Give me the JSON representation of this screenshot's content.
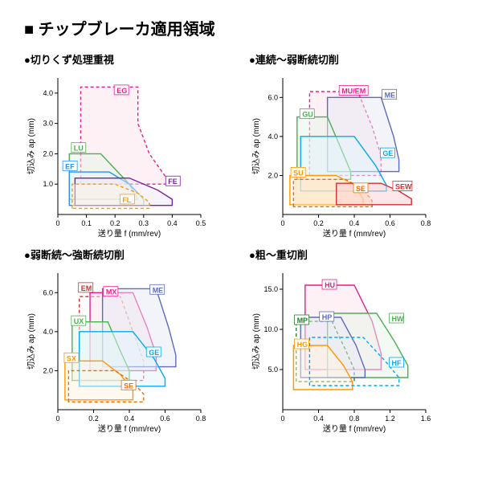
{
  "main_title": "■ チップブレーカ適用領域",
  "axis_y_label": "切込み ap (mm)",
  "axis_x_label": "送り量 f (mm/rev)",
  "charts": [
    {
      "title": "●切りくず処理重視",
      "xlim": [
        0,
        0.5
      ],
      "xticks": [
        0,
        0.1,
        0.2,
        0.3,
        0.4,
        0.5
      ],
      "ylim": [
        0,
        4.5
      ],
      "yticks": [
        1.0,
        2.0,
        3.0,
        4.0
      ],
      "regions": [
        {
          "name": "EG",
          "color": "#e91e8a",
          "fill": "#fce4ec",
          "dash": true,
          "pts": [
            [
              0.08,
              1.0
            ],
            [
              0.08,
              4.2
            ],
            [
              0.28,
              4.2
            ],
            [
              0.28,
              3.0
            ],
            [
              0.32,
              2.0
            ],
            [
              0.38,
              1.2
            ],
            [
              0.38,
              1.0
            ]
          ],
          "lx": 0.2,
          "ly": 4.0
        },
        {
          "name": "LU",
          "color": "#4caf50",
          "fill": "#e8f5e9",
          "dash": false,
          "pts": [
            [
              0.04,
              0.5
            ],
            [
              0.04,
              2.0
            ],
            [
              0.15,
              2.0
            ],
            [
              0.2,
              1.5
            ],
            [
              0.25,
              1.0
            ],
            [
              0.28,
              0.5
            ]
          ],
          "lx": 0.05,
          "ly": 2.1
        },
        {
          "name": "EF",
          "color": "#2196f3",
          "fill": "#e3f2fd",
          "dash": false,
          "pts": [
            [
              0.04,
              0.3
            ],
            [
              0.04,
              1.4
            ],
            [
              0.18,
              1.4
            ],
            [
              0.25,
              1.0
            ],
            [
              0.3,
              0.5
            ],
            [
              0.3,
              0.3
            ]
          ],
          "lx": 0.02,
          "ly": 1.5
        },
        {
          "name": "FE",
          "color": "#7b1fa2",
          "fill": "#ede7f6",
          "dash": false,
          "pts": [
            [
              0.06,
              0.3
            ],
            [
              0.06,
              1.2
            ],
            [
              0.25,
              1.2
            ],
            [
              0.35,
              0.8
            ],
            [
              0.4,
              0.5
            ],
            [
              0.4,
              0.3
            ]
          ],
          "lx": 0.38,
          "ly": 1.0
        },
        {
          "name": "FL",
          "color": "#ff9800",
          "fill": "#fff3e0",
          "dash": true,
          "pts": [
            [
              0.05,
              0.2
            ],
            [
              0.05,
              1.0
            ],
            [
              0.2,
              1.0
            ],
            [
              0.28,
              0.7
            ],
            [
              0.32,
              0.4
            ],
            [
              0.32,
              0.2
            ]
          ],
          "lx": 0.22,
          "ly": 0.4
        }
      ]
    },
    {
      "title": "●連続〜弱断続切削",
      "xlim": [
        0,
        0.8
      ],
      "xticks": [
        0,
        0.2,
        0.4,
        0.6,
        0.8
      ],
      "ylim": [
        0,
        7
      ],
      "yticks": [
        2.0,
        4.0,
        6.0
      ],
      "regions": [
        {
          "name": "MU/EM",
          "color": "#e91e8a",
          "fill": "#fce4ec",
          "dash": true,
          "pts": [
            [
              0.15,
              2.0
            ],
            [
              0.15,
              6.3
            ],
            [
              0.42,
              6.3
            ],
            [
              0.5,
              4.5
            ],
            [
              0.55,
              3.0
            ],
            [
              0.55,
              2.0
            ]
          ],
          "lx": 0.32,
          "ly": 6.2
        },
        {
          "name": "ME",
          "color": "#5c6bc0",
          "fill": "#e8eaf6",
          "dash": false,
          "pts": [
            [
              0.25,
              2.2
            ],
            [
              0.25,
              6.0
            ],
            [
              0.55,
              6.0
            ],
            [
              0.62,
              4.0
            ],
            [
              0.65,
              2.8
            ],
            [
              0.65,
              2.2
            ]
          ],
          "lx": 0.56,
          "ly": 6.0
        },
        {
          "name": "GU",
          "color": "#4caf50",
          "fill": "#e8f5e9",
          "dash": false,
          "pts": [
            [
              0.08,
              1.8
            ],
            [
              0.08,
              5.0
            ],
            [
              0.25,
              5.0
            ],
            [
              0.32,
              3.5
            ],
            [
              0.38,
              2.2
            ],
            [
              0.38,
              1.8
            ]
          ],
          "lx": 0.1,
          "ly": 5.0
        },
        {
          "name": "GE",
          "color": "#03a9f4",
          "fill": "#e1f5fe",
          "dash": false,
          "pts": [
            [
              0.1,
              1.2
            ],
            [
              0.1,
              4.0
            ],
            [
              0.4,
              4.0
            ],
            [
              0.52,
              2.5
            ],
            [
              0.58,
              1.5
            ],
            [
              0.58,
              1.2
            ]
          ],
          "lx": 0.55,
          "ly": 3.0
        },
        {
          "name": "SU",
          "color": "#ff9800",
          "fill": "#fff3e0",
          "dash": false,
          "pts": [
            [
              0.04,
              0.5
            ],
            [
              0.04,
              2.0
            ],
            [
              0.3,
              2.0
            ],
            [
              0.4,
              1.5
            ],
            [
              0.45,
              0.8
            ],
            [
              0.45,
              0.5
            ]
          ],
          "lx": 0.05,
          "ly": 2.0
        },
        {
          "name": "SE",
          "color": "#ef6c00",
          "fill": "#ffe0b2",
          "dash": true,
          "pts": [
            [
              0.06,
              0.4
            ],
            [
              0.06,
              1.8
            ],
            [
              0.35,
              1.8
            ],
            [
              0.45,
              1.3
            ],
            [
              0.5,
              0.7
            ],
            [
              0.5,
              0.4
            ]
          ],
          "lx": 0.4,
          "ly": 1.2
        },
        {
          "name": "SEW",
          "color": "#d32f2f",
          "fill": "#ffcdd2",
          "dash": false,
          "pts": [
            [
              0.3,
              0.5
            ],
            [
              0.3,
              1.6
            ],
            [
              0.55,
              1.6
            ],
            [
              0.65,
              1.2
            ],
            [
              0.72,
              0.8
            ],
            [
              0.72,
              0.5
            ]
          ],
          "lx": 0.62,
          "ly": 1.3
        }
      ]
    },
    {
      "title": "●弱断続〜強断続切削",
      "xlim": [
        0,
        0.8
      ],
      "xticks": [
        0,
        0.2,
        0.4,
        0.6,
        0.8
      ],
      "ylim": [
        0,
        7
      ],
      "yticks": [
        2.0,
        4.0,
        6.0
      ],
      "regions": [
        {
          "name": "EM",
          "color": "#d32f2f",
          "fill": "none",
          "dash": true,
          "pts": [
            [
              0.12,
              1.5
            ],
            [
              0.12,
              5.8
            ],
            [
              0.35,
              5.8
            ],
            [
              0.42,
              4.0
            ],
            [
              0.48,
              2.5
            ],
            [
              0.48,
              1.5
            ]
          ],
          "lx": 0.12,
          "ly": 6.1
        },
        {
          "name": "MX",
          "color": "#e91e8a",
          "fill": "#fce4ec",
          "dash": false,
          "pts": [
            [
              0.18,
              2.0
            ],
            [
              0.18,
              6.0
            ],
            [
              0.42,
              6.0
            ],
            [
              0.5,
              4.2
            ],
            [
              0.55,
              2.8
            ],
            [
              0.55,
              2.0
            ]
          ],
          "lx": 0.26,
          "ly": 5.9
        },
        {
          "name": "ME",
          "color": "#5c6bc0",
          "fill": "#e8eaf6",
          "dash": false,
          "pts": [
            [
              0.25,
              2.2
            ],
            [
              0.25,
              6.2
            ],
            [
              0.55,
              6.2
            ],
            [
              0.62,
              4.2
            ],
            [
              0.66,
              2.8
            ],
            [
              0.66,
              2.2
            ]
          ],
          "lx": 0.52,
          "ly": 6.0
        },
        {
          "name": "UX",
          "color": "#4caf50",
          "fill": "#e8f5e9",
          "dash": false,
          "pts": [
            [
              0.08,
              1.5
            ],
            [
              0.08,
              4.5
            ],
            [
              0.28,
              4.5
            ],
            [
              0.35,
              3.0
            ],
            [
              0.4,
              2.0
            ],
            [
              0.4,
              1.5
            ]
          ],
          "lx": 0.08,
          "ly": 4.4
        },
        {
          "name": "GE",
          "color": "#03a9f4",
          "fill": "#e1f5fe",
          "dash": false,
          "pts": [
            [
              0.12,
              1.2
            ],
            [
              0.12,
              4.0
            ],
            [
              0.42,
              4.0
            ],
            [
              0.54,
              2.6
            ],
            [
              0.6,
              1.6
            ],
            [
              0.6,
              1.2
            ]
          ],
          "lx": 0.5,
          "ly": 2.8
        },
        {
          "name": "SX",
          "color": "#ff9800",
          "fill": "#fff3e0",
          "dash": false,
          "pts": [
            [
              0.04,
              0.5
            ],
            [
              0.04,
              2.5
            ],
            [
              0.25,
              2.5
            ],
            [
              0.35,
              1.8
            ],
            [
              0.42,
              1.0
            ],
            [
              0.42,
              0.5
            ]
          ],
          "lx": 0.04,
          "ly": 2.5
        },
        {
          "name": "SE",
          "color": "#ef6c00",
          "fill": "none",
          "dash": true,
          "pts": [
            [
              0.06,
              0.4
            ],
            [
              0.06,
              2.0
            ],
            [
              0.32,
              2.0
            ],
            [
              0.42,
              1.4
            ],
            [
              0.48,
              0.8
            ],
            [
              0.48,
              0.4
            ]
          ],
          "lx": 0.36,
          "ly": 1.1
        }
      ]
    },
    {
      "title": "●粗〜重切削",
      "xlim": [
        0,
        1.6
      ],
      "xticks": [
        0,
        0.4,
        0.8,
        1.2,
        1.6
      ],
      "ylim": [
        0,
        17
      ],
      "yticks": [
        5.0,
        10.0,
        15.0
      ],
      "regions": [
        {
          "name": "HU",
          "color": "#e91e8a",
          "fill": "#fce4ec",
          "dash": false,
          "pts": [
            [
              0.25,
              5.0
            ],
            [
              0.25,
              15.5
            ],
            [
              0.8,
              15.5
            ],
            [
              1.0,
              11.0
            ],
            [
              1.1,
              7.0
            ],
            [
              1.1,
              5.0
            ]
          ],
          "lx": 0.45,
          "ly": 15.2
        },
        {
          "name": "HW",
          "color": "#4caf50",
          "fill": "#e8f5e9",
          "dash": false,
          "pts": [
            [
              0.5,
              4.0
            ],
            [
              0.5,
              12.0
            ],
            [
              1.05,
              12.0
            ],
            [
              1.25,
              8.5
            ],
            [
              1.4,
              5.5
            ],
            [
              1.4,
              4.0
            ]
          ],
          "lx": 1.2,
          "ly": 11.0
        },
        {
          "name": "MP",
          "color": "#2e7d32",
          "fill": "none",
          "dash": true,
          "pts": [
            [
              0.15,
              3.5
            ],
            [
              0.15,
              11.0
            ],
            [
              0.55,
              11.0
            ],
            [
              0.7,
              7.5
            ],
            [
              0.8,
              5.0
            ],
            [
              0.8,
              3.5
            ]
          ],
          "lx": 0.14,
          "ly": 10.8
        },
        {
          "name": "HP",
          "color": "#5c6bc0",
          "fill": "#e8eaf6",
          "dash": false,
          "pts": [
            [
              0.2,
              4.0
            ],
            [
              0.2,
              11.5
            ],
            [
              0.65,
              11.5
            ],
            [
              0.82,
              8.0
            ],
            [
              0.92,
              5.0
            ],
            [
              0.92,
              4.0
            ]
          ],
          "lx": 0.42,
          "ly": 11.2
        },
        {
          "name": "HG",
          "color": "#ff9800",
          "fill": "#fff3e0",
          "dash": false,
          "pts": [
            [
              0.12,
              2.5
            ],
            [
              0.12,
              8.0
            ],
            [
              0.5,
              8.0
            ],
            [
              0.68,
              5.5
            ],
            [
              0.78,
              3.5
            ],
            [
              0.78,
              2.5
            ]
          ],
          "lx": 0.14,
          "ly": 7.8
        },
        {
          "name": "HF",
          "color": "#03a9f4",
          "fill": "none",
          "dash": true,
          "pts": [
            [
              0.3,
              3.0
            ],
            [
              0.3,
              9.0
            ],
            [
              0.9,
              9.0
            ],
            [
              1.15,
              6.0
            ],
            [
              1.3,
              4.0
            ],
            [
              1.3,
              3.0
            ]
          ],
          "lx": 1.2,
          "ly": 5.5
        }
      ]
    }
  ]
}
